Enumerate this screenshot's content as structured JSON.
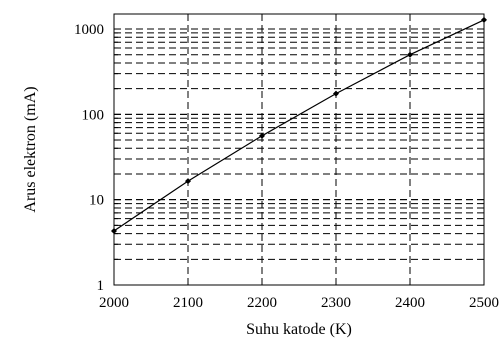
{
  "chart_data": {
    "type": "line",
    "title": "",
    "xlabel": "Suhu katode (K)",
    "ylabel": "Arus elektron (mA)",
    "xlim": [
      2000,
      2500
    ],
    "ylim": [
      1,
      1500
    ],
    "yscale": "log",
    "grid": true,
    "grid_style": "dashed",
    "x_ticks": [
      "2000",
      "2100",
      "2200",
      "2300",
      "2400",
      "2500"
    ],
    "y_ticks": [
      "1",
      "10",
      "100",
      "1000"
    ],
    "series": [
      {
        "x": [
          2000,
          2100,
          2200,
          2300,
          2400,
          2500
        ],
        "y": [
          4.3,
          16.5,
          56,
          175,
          500,
          1280
        ],
        "color": "#000000",
        "marker": "diamond"
      }
    ]
  }
}
